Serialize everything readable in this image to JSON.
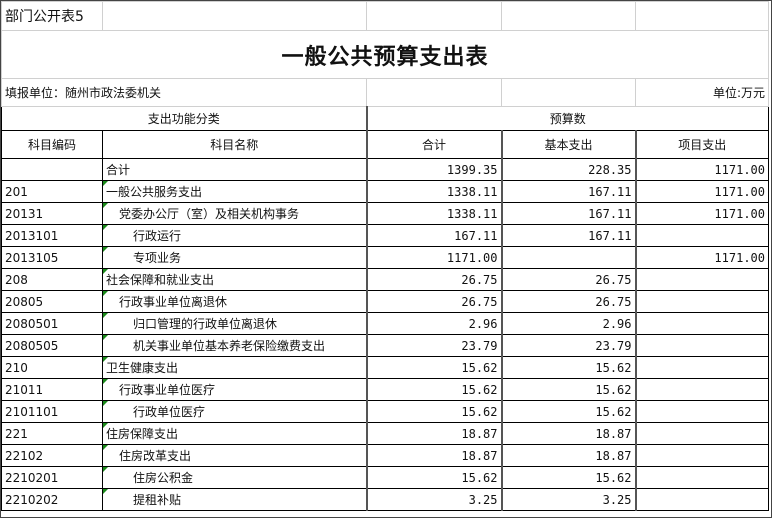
{
  "sheet_label": "部门公开表5",
  "title": "一般公共预算支出表",
  "filler_unit": "填报单位：随州市政法委机关",
  "unit": "单位:万元",
  "headers": {
    "group_function": "支出功能分类",
    "group_budget": "预算数",
    "code": "科目编码",
    "name": "科目名称",
    "total": "合计",
    "basic": "基本支出",
    "project": "项目支出"
  },
  "rows": [
    {
      "code": "",
      "name": "合计",
      "level": 0,
      "total": "1399.35",
      "basic": "228.35",
      "project": "1171.00"
    },
    {
      "code": "201",
      "name": "一般公共服务支出",
      "level": 0,
      "total": "1338.11",
      "basic": "167.11",
      "project": "1171.00"
    },
    {
      "code": "20131",
      "name": "党委办公厅（室）及相关机构事务",
      "level": 1,
      "total": "1338.11",
      "basic": "167.11",
      "project": "1171.00"
    },
    {
      "code": "2013101",
      "name": "行政运行",
      "level": 2,
      "total": "167.11",
      "basic": "167.11",
      "project": ""
    },
    {
      "code": "2013105",
      "name": "专项业务",
      "level": 2,
      "total": "1171.00",
      "basic": "",
      "project": "1171.00"
    },
    {
      "code": "208",
      "name": "社会保障和就业支出",
      "level": 0,
      "total": "26.75",
      "basic": "26.75",
      "project": ""
    },
    {
      "code": "20805",
      "name": "行政事业单位离退休",
      "level": 1,
      "total": "26.75",
      "basic": "26.75",
      "project": ""
    },
    {
      "code": "2080501",
      "name": "归口管理的行政单位离退休",
      "level": 2,
      "total": "2.96",
      "basic": "2.96",
      "project": ""
    },
    {
      "code": "2080505",
      "name": "机关事业单位基本养老保险缴费支出",
      "level": 2,
      "total": "23.79",
      "basic": "23.79",
      "project": ""
    },
    {
      "code": "210",
      "name": "卫生健康支出",
      "level": 0,
      "total": "15.62",
      "basic": "15.62",
      "project": ""
    },
    {
      "code": "21011",
      "name": "行政事业单位医疗",
      "level": 1,
      "total": "15.62",
      "basic": "15.62",
      "project": ""
    },
    {
      "code": "2101101",
      "name": "行政单位医疗",
      "level": 2,
      "total": "15.62",
      "basic": "15.62",
      "project": ""
    },
    {
      "code": "221",
      "name": "住房保障支出",
      "level": 0,
      "total": "18.87",
      "basic": "18.87",
      "project": ""
    },
    {
      "code": "22102",
      "name": "住房改革支出",
      "level": 1,
      "total": "18.87",
      "basic": "18.87",
      "project": ""
    },
    {
      "code": "2210201",
      "name": "住房公积金",
      "level": 2,
      "total": "15.62",
      "basic": "15.62",
      "project": ""
    },
    {
      "code": "2210202",
      "name": "提租补贴",
      "level": 2,
      "total": "3.25",
      "basic": "3.25",
      "project": ""
    }
  ]
}
